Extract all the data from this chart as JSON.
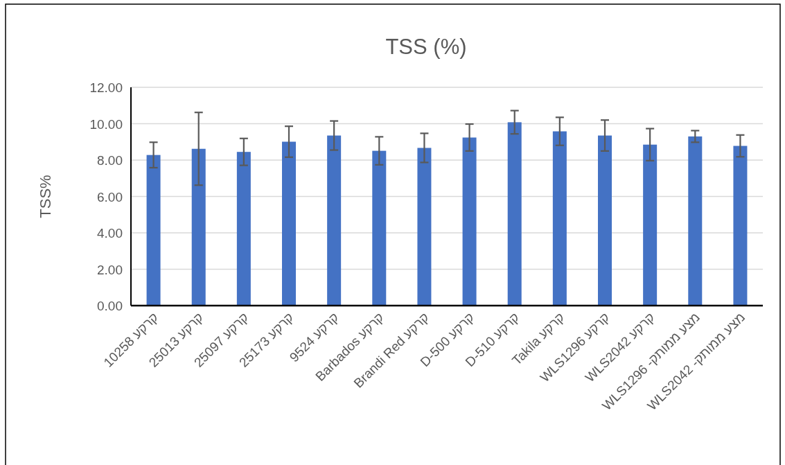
{
  "chart_data": {
    "type": "bar",
    "title": "TSS (%)",
    "ylabel": "TSS%",
    "categories": [
      "10258 קרקע",
      "25013 קרקע",
      "25097 קרקע",
      "25173 קרקע",
      "9524 קרקע",
      "Barbados  קרקע",
      "Brandi Red  קרקע",
      "D-500 קרקע",
      "D-510 קרקע",
      "Takila  קרקע",
      "WLS1296 קרקע",
      "WLS2042 קרקע",
      "WLS1296 -מצע ממותק",
      "WLS2042 -מצע ממותק"
    ],
    "values": [
      8.28,
      8.62,
      8.45,
      9.01,
      9.35,
      8.51,
      8.67,
      9.24,
      10.08,
      9.58,
      9.35,
      8.85,
      9.3,
      8.78
    ],
    "errors": [
      0.7,
      2.0,
      0.74,
      0.85,
      0.8,
      0.77,
      0.8,
      0.74,
      0.64,
      0.77,
      0.85,
      0.88,
      0.32,
      0.6
    ],
    "color": "#4472c4",
    "ylim": [
      0,
      12
    ],
    "yticks": [
      {
        "value": 0,
        "label": "0.00"
      },
      {
        "value": 2,
        "label": "2.00"
      },
      {
        "value": 4,
        "label": "4.00"
      },
      {
        "value": 6,
        "label": "6.00"
      },
      {
        "value": 8,
        "label": "8.00"
      },
      {
        "value": 10,
        "label": "10.00"
      },
      {
        "value": 12,
        "label": "12.00"
      }
    ],
    "grid": "y"
  }
}
